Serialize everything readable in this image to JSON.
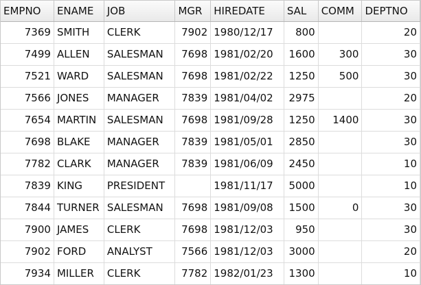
{
  "table": {
    "columns": [
      {
        "key": "EMPNO",
        "label": "EMPNO",
        "align": "num"
      },
      {
        "key": "ENAME",
        "label": "ENAME",
        "align": "txt"
      },
      {
        "key": "JOB",
        "label": "JOB",
        "align": "txt"
      },
      {
        "key": "MGR",
        "label": "MGR",
        "align": "num"
      },
      {
        "key": "HIREDATE",
        "label": "HIREDATE",
        "align": "txt"
      },
      {
        "key": "SAL",
        "label": "SAL",
        "align": "num"
      },
      {
        "key": "COMM",
        "label": "COMM",
        "align": "num"
      },
      {
        "key": "DEPTNO",
        "label": "DEPTNO",
        "align": "num"
      }
    ],
    "rows": [
      [
        "7369",
        "SMITH",
        "CLERK",
        "7902",
        "1980/12/17",
        "800",
        "",
        "20"
      ],
      [
        "7499",
        "ALLEN",
        "SALESMAN",
        "7698",
        "1981/02/20",
        "1600",
        "300",
        "30"
      ],
      [
        "7521",
        "WARD",
        "SALESMAN",
        "7698",
        "1981/02/22",
        "1250",
        "500",
        "30"
      ],
      [
        "7566",
        "JONES",
        "MANAGER",
        "7839",
        "1981/04/02",
        "2975",
        "",
        "20"
      ],
      [
        "7654",
        "MARTIN",
        "SALESMAN",
        "7698",
        "1981/09/28",
        "1250",
        "1400",
        "30"
      ],
      [
        "7698",
        "BLAKE",
        "MANAGER",
        "7839",
        "1981/05/01",
        "2850",
        "",
        "30"
      ],
      [
        "7782",
        "CLARK",
        "MANAGER",
        "7839",
        "1981/06/09",
        "2450",
        "",
        "10"
      ],
      [
        "7839",
        "KING",
        "PRESIDENT",
        "",
        "1981/11/17",
        "5000",
        "",
        "10"
      ],
      [
        "7844",
        "TURNER",
        "SALESMAN",
        "7698",
        "1981/09/08",
        "1500",
        "0",
        "30"
      ],
      [
        "7900",
        "JAMES",
        "CLERK",
        "7698",
        "1981/12/03",
        "950",
        "",
        "30"
      ],
      [
        "7902",
        "FORD",
        "ANALYST",
        "7566",
        "1981/12/03",
        "3000",
        "",
        "20"
      ],
      [
        "7934",
        "MILLER",
        "CLERK",
        "7782",
        "1982/01/23",
        "1300",
        "",
        "10"
      ]
    ]
  }
}
